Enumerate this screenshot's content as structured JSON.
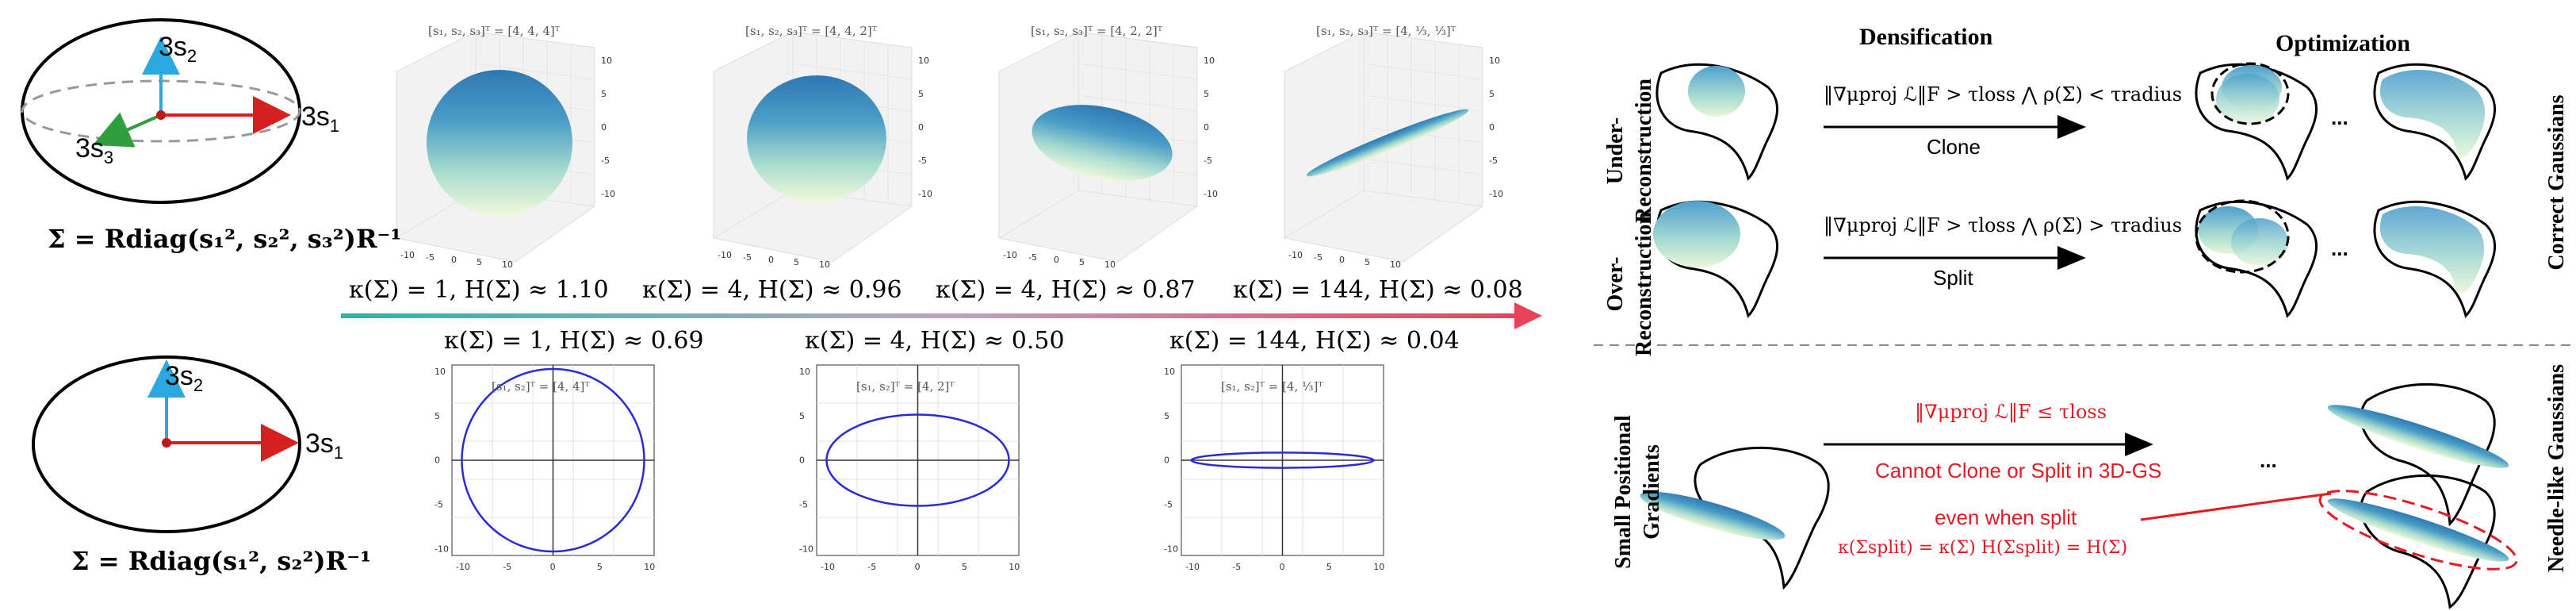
{
  "left": {
    "ellipse3d": {
      "label_s2": "3s",
      "sub_s2": "2",
      "label_s1": "3s",
      "sub_s1": "1",
      "label_s3": "3s",
      "sub_s3": "3",
      "formula": "Σ = Rdiag(s₁², s₂², s₃²)R⁻¹"
    },
    "ellipse2d": {
      "label_s2": "3s",
      "sub_s2": "2",
      "label_s1": "3s",
      "sub_s1": "1",
      "formula": "Σ = Rdiag(s₁², s₂²)R⁻¹"
    }
  },
  "middle": {
    "plots3d": [
      {
        "title": "[s₁, s₂, s₃]ᵀ = [4, 4, 4]ᵀ",
        "caption": "κ(Σ) = 1, H(Σ) ≈ 1.10"
      },
      {
        "title": "[s₁, s₂, s₃]ᵀ = [4, 4, 2]ᵀ",
        "caption": "κ(Σ) = 4, H(Σ) ≈ 0.96"
      },
      {
        "title": "[s₁, s₂, s₃]ᵀ = [4, 2, 2]ᵀ",
        "caption": "κ(Σ) = 4, H(Σ) ≈ 0.87"
      },
      {
        "title": "[s₁, s₂, s₃]ᵀ = [4, ⅓, ⅓]ᵀ",
        "caption": "κ(Σ) = 144, H(Σ) ≈ 0.08"
      }
    ],
    "plots2d": [
      {
        "title": "[s₁, s₂]ᵀ = [4, 4]ᵀ",
        "caption": "κ(Σ) = 1, H(Σ) ≈ 0.69"
      },
      {
        "title": "[s₁, s₂]ᵀ = [4, 2]ᵀ",
        "caption": "κ(Σ) = 4, H(Σ) ≈ 0.50"
      },
      {
        "title": "[s₁, s₂]ᵀ = [4, ⅓]ᵀ",
        "caption": "κ(Σ) = 144, H(Σ) ≈ 0.04"
      }
    ],
    "ticks3d": [
      "-10",
      "-5",
      "0",
      "5",
      "10"
    ],
    "ticks2d": [
      "10",
      "5",
      "0",
      "-5",
      "-10"
    ],
    "ticks2d_x": [
      "-10",
      "-5",
      "0",
      "5",
      "10"
    ]
  },
  "right": {
    "col_densification": "Densification",
    "col_optimization": "Optimization",
    "row_under": "Under-\nReconstruction",
    "row_under_1": "Under-",
    "row_under_2": "Reconstruction",
    "row_over_1": "Over-",
    "row_over_2": "Reconstruction",
    "row_small_1": "Small Positional",
    "row_small_2": "Gradients",
    "right_correct": "Correct  Gaussians",
    "right_needle": "Needle-like  Gaussians",
    "clone_cond": "‖∇μproj ℒ‖F > τloss ⋀ ρ(Σ) < τradius",
    "clone_label": "Clone",
    "split_cond": "‖∇μproj ℒ‖F > τloss ⋀ ρ(Σ) > τradius",
    "split_label": "Split",
    "small_cond": "‖∇μproj ℒ‖F ≤ τloss",
    "small_label": "Cannot Clone or Split in 3D-GS",
    "even_label": "even when split",
    "even_formula": "κ(Σsplit) = κ(Σ)   H(Σsplit) = H(Σ)",
    "ellipsis": "..."
  },
  "colors": {
    "accent_red": "#e31b23",
    "gradient_start": "#2bb5a8",
    "gradient_end": "#e8435a",
    "axis_red": "#d42020",
    "axis_blue": "#29a9e0",
    "axis_green": "#2e9e3e",
    "plot_blue": "#2b2bd6"
  }
}
